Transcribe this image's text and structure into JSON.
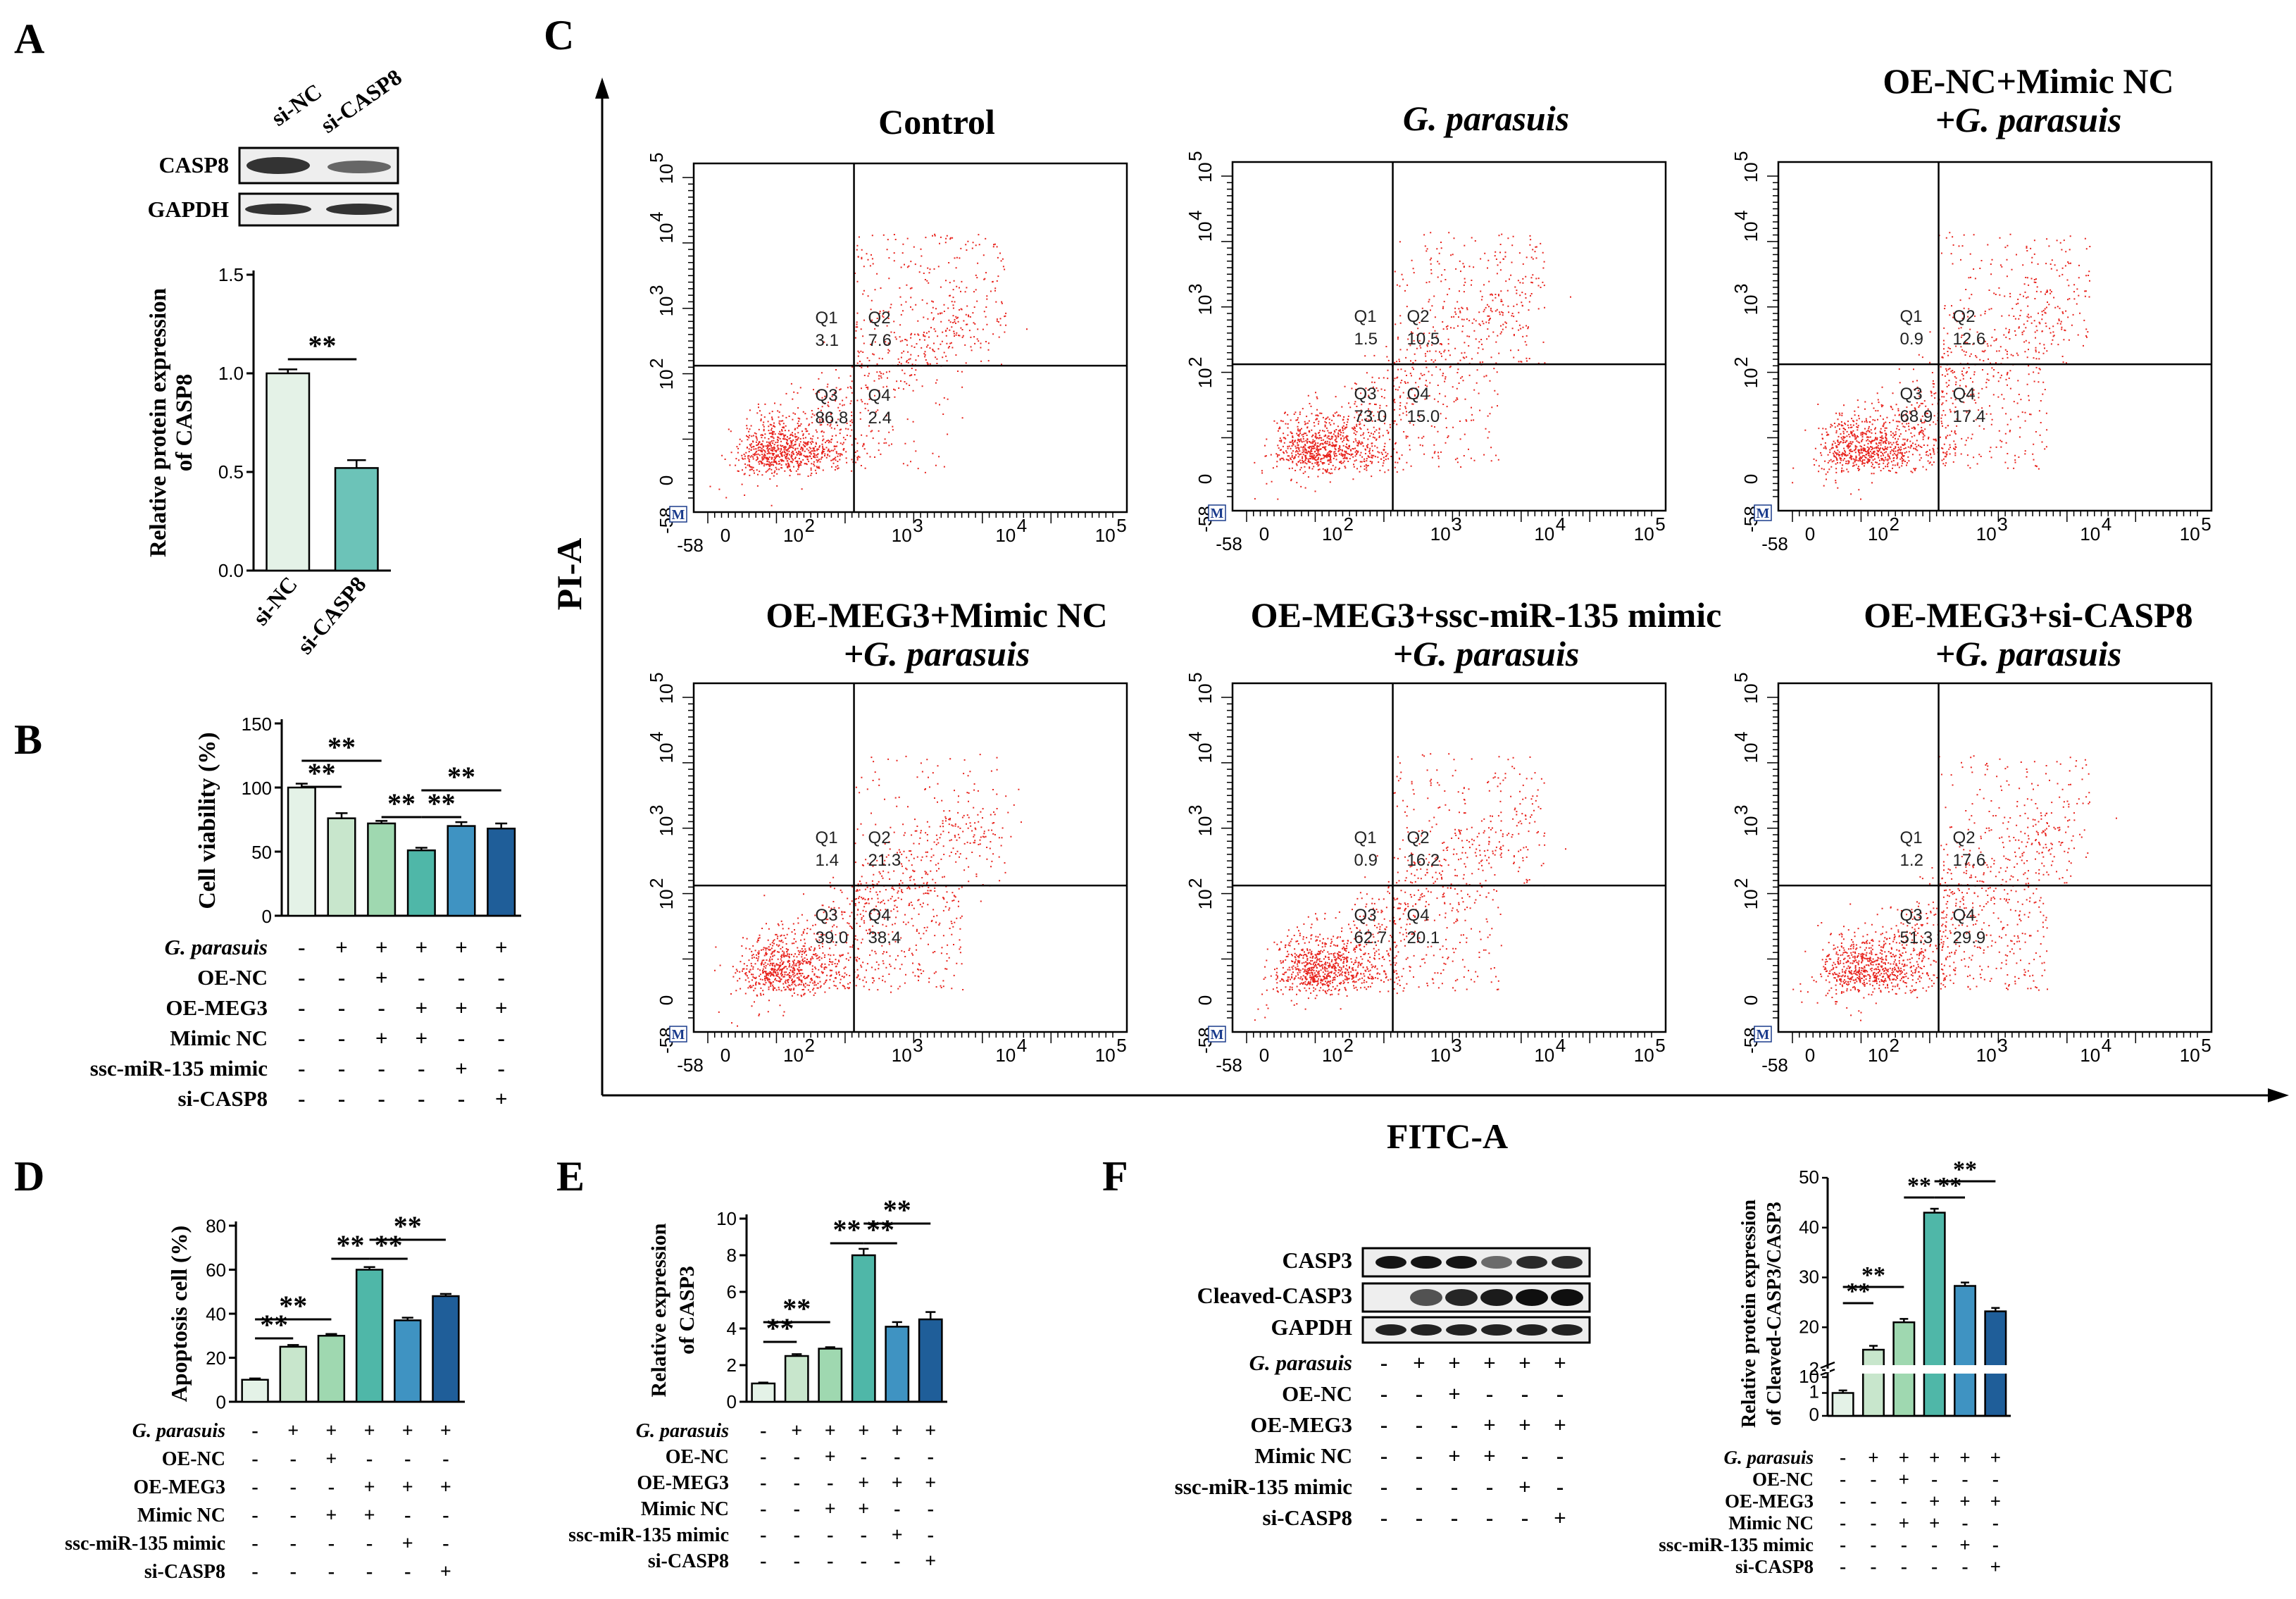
{
  "panels": {
    "A": "A",
    "B": "B",
    "C": "C",
    "D": "D",
    "E": "E",
    "F": "F"
  },
  "colors": [
    "#e4f2e7",
    "#c8e6cc",
    "#9fd8b0",
    "#4fb7a8",
    "#3f93c2",
    "#1f5e99"
  ],
  "row_labels": {
    "gp": "G. parasuis",
    "oenc": "OE-NC",
    "oemeg3": "OE-MEG3",
    "mimicnc": "Mimic NC",
    "mimic135": "ssc-miR-135 mimic",
    "sicasp8": "si-CASP8"
  },
  "signs": {
    "gp": [
      "-",
      "+",
      "+",
      "+",
      "+",
      "+"
    ],
    "oenc": [
      "-",
      "-",
      "+",
      "-",
      "-",
      "-"
    ],
    "oemeg3": [
      "-",
      "-",
      "-",
      "+",
      "+",
      "+"
    ],
    "mimicnc": [
      "-",
      "-",
      "+",
      "+",
      "-",
      "-"
    ],
    "mimic135": [
      "-",
      "-",
      "-",
      "-",
      "+",
      "-"
    ],
    "sicasp8": [
      "-",
      "-",
      "-",
      "-",
      "-",
      "+"
    ]
  },
  "panel_A": {
    "blot_lanes": [
      "si-NC",
      "si-CASP8"
    ],
    "blot_rows": [
      "CASP8",
      "GAPDH"
    ],
    "chart_data": {
      "type": "bar",
      "categories": [
        "si-NC",
        "si-CASP8"
      ],
      "values": [
        1.0,
        0.52
      ],
      "errors": [
        0.02,
        0.04
      ],
      "ylabel_line1": "Relative protein expression",
      "ylabel_line2": "of CASP8",
      "ylim": [
        0,
        1.5
      ],
      "yticks": [
        "0.0",
        "0.5",
        "1.0",
        "1.5"
      ],
      "significance": [
        {
          "from": 0,
          "to": 1,
          "label": "**"
        }
      ]
    }
  },
  "panel_B": {
    "chart_data": {
      "type": "bar",
      "values": [
        100,
        76,
        72,
        51,
        70,
        68
      ],
      "errors": [
        3,
        4,
        2,
        2,
        3,
        4
      ],
      "ylabel": "Cell viability (%)",
      "ylim": [
        0,
        150
      ],
      "yticks": [
        "0",
        "50",
        "100",
        "150"
      ],
      "significance": [
        {
          "from": 0,
          "to": 1,
          "label": "**"
        },
        {
          "from": 0,
          "to": 2,
          "label": "**"
        },
        {
          "from": 2,
          "to": 3,
          "label": "**"
        },
        {
          "from": 3,
          "to": 4,
          "label": "**"
        },
        {
          "from": 3,
          "to": 5,
          "label": "**"
        }
      ]
    }
  },
  "panel_C": {
    "xlabel": "FITC-A",
    "ylabel": "PI-A",
    "gate_marker": "M",
    "axis_ticks_x": [
      "-58",
      "0",
      "10",
      "10",
      "10",
      "10"
    ],
    "axis_ticks_y": [
      "-58",
      "0",
      "10",
      "10",
      "10",
      "10"
    ],
    "tick_exps": [
      "2",
      "3",
      "4",
      "5"
    ],
    "plots": [
      {
        "title1": "Control",
        "title2": "",
        "q1": "3.1",
        "q2": "7.6",
        "q3": "86.8",
        "q4": "2.4"
      },
      {
        "title1": "G. parasuis",
        "title2": "",
        "q1": "1.5",
        "q2": "10.5",
        "q3": "73.0",
        "q4": "15.0"
      },
      {
        "title1": "OE-NC+Mimic NC",
        "title2": "+G. parasuis",
        "q1": "0.9",
        "q2": "12.6",
        "q3": "68.9",
        "q4": "17.4"
      },
      {
        "title1": "OE-MEG3+Mimic NC",
        "title2": "+G. parasuis",
        "q1": "1.4",
        "q2": "21.3",
        "q3": "39.0",
        "q4": "38.4"
      },
      {
        "title1": "OE-MEG3+ssc-miR-135 mimic",
        "title2": "+G. parasuis",
        "q1": "0.9",
        "q2": "16.2",
        "q3": "62.7",
        "q4": "20.1"
      },
      {
        "title1": "OE-MEG3+si-CASP8",
        "title2": "+G. parasuis",
        "q1": "1.2",
        "q2": "17.6",
        "q3": "51.3",
        "q4": "29.9"
      }
    ]
  },
  "panel_D": {
    "chart_data": {
      "type": "bar",
      "values": [
        10,
        25,
        30,
        60,
        37,
        48
      ],
      "errors": [
        0.6,
        0.8,
        0.8,
        1.2,
        1.2,
        1.0
      ],
      "ylabel": "Apoptosis cell (%)",
      "ylim": [
        0,
        80
      ],
      "yticks": [
        "0",
        "20",
        "40",
        "60",
        "80"
      ],
      "significance": [
        {
          "from": 0,
          "to": 1,
          "label": "**"
        },
        {
          "from": 0,
          "to": 2,
          "label": "**"
        },
        {
          "from": 2,
          "to": 3,
          "label": "**"
        },
        {
          "from": 3,
          "to": 4,
          "label": "**"
        },
        {
          "from": 3,
          "to": 5,
          "label": "**"
        }
      ]
    }
  },
  "panel_E": {
    "chart_data": {
      "type": "bar",
      "values": [
        1.0,
        2.5,
        2.9,
        8.0,
        4.1,
        4.5
      ],
      "errors": [
        0.05,
        0.1,
        0.08,
        0.35,
        0.25,
        0.4
      ],
      "ylabel_line1": "Relative expression",
      "ylabel_line2": "of CASP3",
      "ylim": [
        0,
        10
      ],
      "yticks": [
        "0",
        "2",
        "4",
        "6",
        "8",
        "10"
      ],
      "significance": [
        {
          "from": 0,
          "to": 1,
          "label": "**"
        },
        {
          "from": 0,
          "to": 2,
          "label": "**"
        },
        {
          "from": 2,
          "to": 3,
          "label": "**"
        },
        {
          "from": 3,
          "to": 4,
          "label": "**"
        },
        {
          "from": 3,
          "to": 5,
          "label": "**"
        }
      ]
    }
  },
  "panel_F": {
    "blot_rows": [
      "CASP3",
      "Cleaved-CASP3",
      "GAPDH"
    ],
    "chart_data": {
      "type": "bar",
      "values": [
        1.0,
        15.5,
        21.0,
        43.0,
        28.3,
        23.2
      ],
      "errors": [
        0.05,
        0.5,
        0.4,
        0.5,
        0.4,
        0.4
      ],
      "ylabel_line1": "Relative protein expression",
      "ylabel_line2": "of Cleaved-CASP3/CASP3",
      "axis_break": [
        2,
        10
      ],
      "ylim": [
        0,
        50
      ],
      "yticks_lower": [
        "0",
        "1",
        "2"
      ],
      "yticks_upper": [
        "10",
        "20",
        "30",
        "40",
        "50"
      ],
      "significance": [
        {
          "from": 0,
          "to": 1,
          "label": "**"
        },
        {
          "from": 0,
          "to": 2,
          "label": "**"
        },
        {
          "from": 2,
          "to": 3,
          "label": "**"
        },
        {
          "from": 3,
          "to": 4,
          "label": "**"
        },
        {
          "from": 3,
          "to": 5,
          "label": "**"
        }
      ]
    }
  }
}
